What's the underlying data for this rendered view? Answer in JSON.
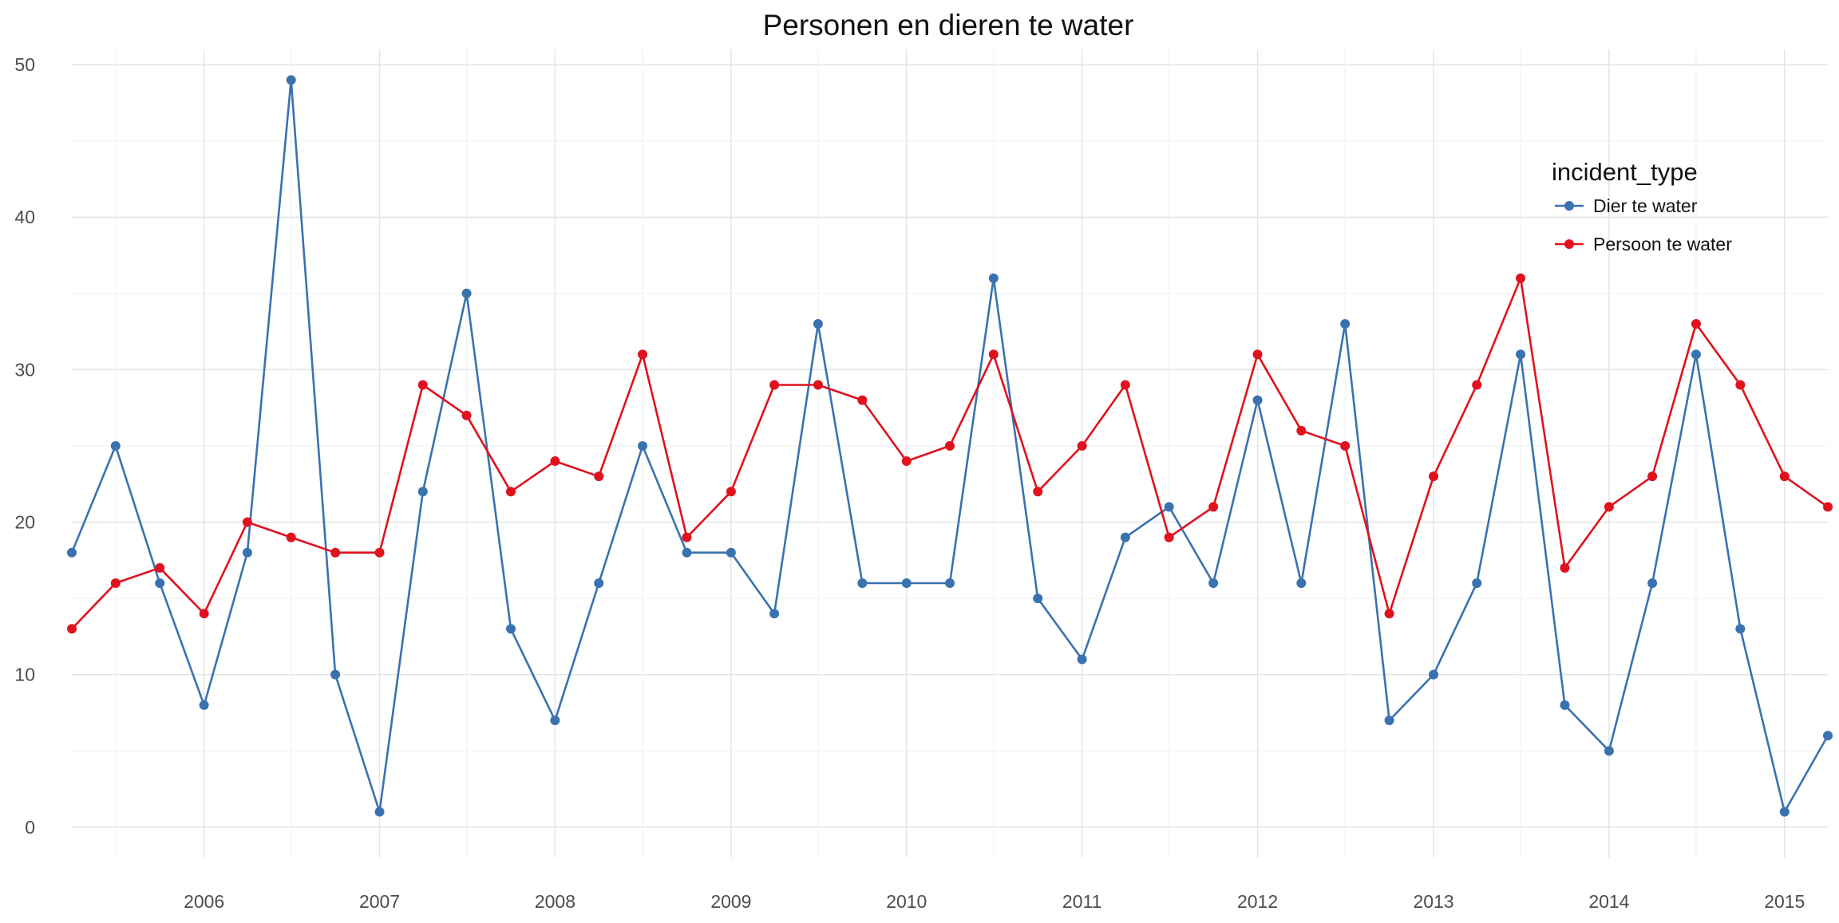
{
  "chart_data": {
    "type": "line",
    "title": "Personen en dieren te water",
    "xlabel": "",
    "ylabel": "",
    "x_tick_labels": [
      "2006",
      "2007",
      "2008",
      "2009",
      "2010",
      "2011",
      "2012",
      "2013",
      "2014",
      "2015"
    ],
    "y_tick_labels": [
      "0",
      "10",
      "20",
      "30",
      "40",
      "50"
    ],
    "xlim": [
      "2005-04-01",
      "2015-04-01"
    ],
    "ylim": [
      -2,
      51
    ],
    "grid": true,
    "legend": {
      "title": "incident_type",
      "position": "top-right"
    },
    "x": [
      "2005-04-01",
      "2005-07-01",
      "2005-10-01",
      "2006-01-01",
      "2006-04-01",
      "2006-07-01",
      "2006-10-01",
      "2007-01-01",
      "2007-04-01",
      "2007-07-01",
      "2007-10-01",
      "2008-01-01",
      "2008-04-01",
      "2008-07-01",
      "2008-10-01",
      "2009-01-01",
      "2009-04-01",
      "2009-07-01",
      "2009-10-01",
      "2010-01-01",
      "2010-04-01",
      "2010-07-01",
      "2010-10-01",
      "2011-01-01",
      "2011-04-01",
      "2011-07-01",
      "2011-10-01",
      "2012-01-01",
      "2012-04-01",
      "2012-07-01",
      "2012-10-01",
      "2013-01-01",
      "2013-04-01",
      "2013-07-01",
      "2013-10-01",
      "2014-01-01",
      "2014-04-01",
      "2014-07-01",
      "2014-10-01",
      "2015-01-01",
      "2015-04-01"
    ],
    "series": [
      {
        "name": "Dier te water",
        "color": "#3A72B0",
        "values": [
          18,
          25,
          16,
          8,
          18,
          49,
          10,
          1,
          22,
          35,
          13,
          7,
          16,
          25,
          18,
          18,
          14,
          33,
          16,
          16,
          16,
          36,
          15,
          11,
          19,
          21,
          16,
          28,
          16,
          33,
          7,
          10,
          16,
          31,
          8,
          5,
          16,
          31,
          13,
          1,
          6
        ]
      },
      {
        "name": "Persoon te water",
        "color": "#E0121E",
        "values": [
          13,
          16,
          17,
          14,
          20,
          19,
          18,
          18,
          29,
          27,
          22,
          24,
          23,
          31,
          19,
          22,
          29,
          29,
          28,
          24,
          25,
          31,
          22,
          25,
          29,
          19,
          21,
          31,
          26,
          25,
          14,
          23,
          29,
          36,
          17,
          21,
          23,
          33,
          29,
          23,
          21
        ]
      }
    ]
  }
}
